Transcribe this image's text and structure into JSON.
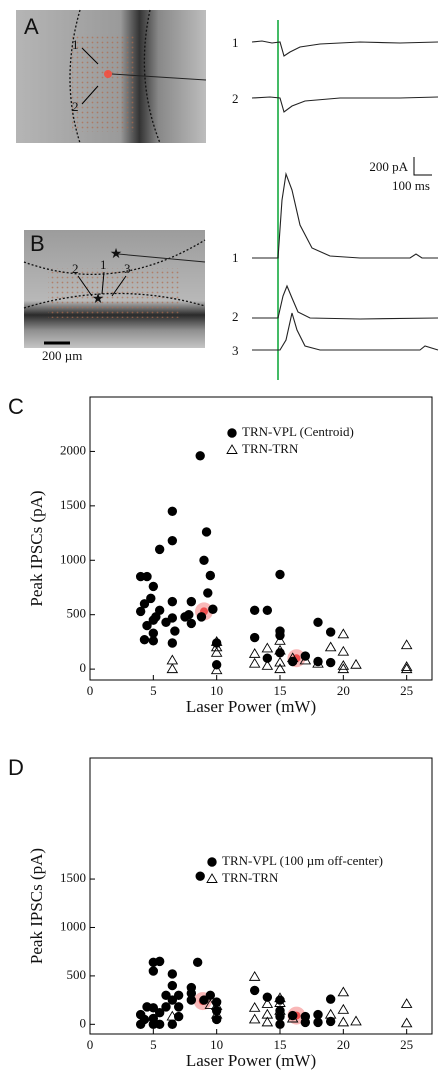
{
  "panels": {
    "A": {
      "label": "A",
      "roi_labels": [
        "1",
        "2"
      ],
      "trace_labels": [
        "1",
        "2"
      ]
    },
    "scale_bar": {
      "current": "200 pA",
      "time": "100 ms"
    },
    "B": {
      "label": "B",
      "roi_labels": [
        "2",
        "1",
        "3"
      ],
      "image_scale": "200 µm",
      "trace_labels": [
        "1",
        "2",
        "3"
      ]
    }
  },
  "chart_data": [
    {
      "type": "scatter",
      "panel_label": "C",
      "y_label": "Peak IPSCs (pA)",
      "x_label": "Laser Power (mW)",
      "xlim": [
        0,
        27
      ],
      "xticks": [
        0,
        5,
        10,
        15,
        20,
        25
      ],
      "ylim": [
        -100,
        2500
      ],
      "yticks": [
        0,
        500,
        1000,
        1500,
        2000
      ],
      "legend": "upper right",
      "series": [
        {
          "name": "TRN-VPL (Centroid)",
          "color": "#000000",
          "marker": "circle",
          "filled": true,
          "x": [
            4,
            4.5,
            5,
            5.5,
            4.8,
            4.3,
            4,
            5,
            5.5,
            4.5,
            5,
            4.3,
            5,
            5.2,
            6.5,
            6.5,
            6.5,
            6,
            6.5,
            6.7,
            6.5,
            7.5,
            7.8,
            8,
            8,
            8.7,
            9.2,
            9,
            9.5,
            9.3,
            8.8,
            9.7,
            10,
            10,
            13,
            13,
            14,
            14,
            15,
            15,
            15,
            15,
            17,
            18,
            18,
            19,
            19,
            16
          ],
          "values": [
            850,
            850,
            760,
            1100,
            650,
            600,
            530,
            450,
            540,
            400,
            330,
            270,
            260,
            480,
            1450,
            1180,
            620,
            430,
            470,
            350,
            240,
            480,
            500,
            620,
            420,
            1960,
            1260,
            1000,
            860,
            700,
            480,
            550,
            240,
            40,
            540,
            290,
            540,
            100,
            870,
            350,
            310,
            150,
            120,
            430,
            70,
            340,
            60,
            70
          ]
        },
        {
          "name": "TRN-TRN",
          "color": "#000000",
          "marker": "triangle",
          "filled": false,
          "x": [
            6.5,
            6.5,
            10,
            10,
            10,
            10,
            13,
            13,
            14,
            14,
            15,
            15,
            15,
            15,
            16,
            17,
            18,
            19,
            20,
            20,
            20,
            20,
            21,
            25,
            25,
            25
          ],
          "values": [
            80,
            0,
            250,
            150,
            200,
            -10,
            140,
            50,
            190,
            30,
            260,
            170,
            60,
            0,
            100,
            80,
            50,
            200,
            320,
            160,
            30,
            0,
            40,
            220,
            20,
            0
          ]
        }
      ],
      "highlights": {
        "color": "#ee3333",
        "x": [
          9,
          16.3
        ],
        "values": [
          530,
          100
        ]
      }
    },
    {
      "type": "scatter",
      "panel_label": "D",
      "y_label": "Peak IPSCs (pA)",
      "x_label": "Laser Power (mW)",
      "xlim": [
        0,
        27
      ],
      "xticks": [
        0,
        5,
        10,
        15,
        20,
        25
      ],
      "ylim": [
        -100,
        2750
      ],
      "yticks": [
        0,
        500,
        1000,
        1500
      ],
      "legend": "upper right",
      "series": [
        {
          "name": "TRN-VPL (100 µm off-center)",
          "color": "#000000",
          "marker": "circle",
          "filled": true,
          "x": [
            4,
            4,
            4.5,
            4.3,
            5,
            5,
            5.5,
            5,
            5,
            5.5,
            6,
            6,
            5,
            5.5,
            6.5,
            6.5,
            7,
            6.5,
            7,
            6.5,
            7,
            8,
            8,
            8,
            8.5,
            8.7,
            9,
            9.5,
            10,
            10,
            10,
            13,
            14,
            15,
            15,
            15,
            15,
            16,
            17,
            18,
            18,
            19,
            19,
            17
          ],
          "values": [
            0,
            100,
            180,
            50,
            640,
            550,
            650,
            170,
            60,
            120,
            300,
            180,
            0,
            0,
            520,
            400,
            300,
            250,
            80,
            0,
            180,
            380,
            320,
            250,
            640,
            1530,
            250,
            300,
            230,
            140,
            50,
            350,
            280,
            250,
            140,
            80,
            0,
            90,
            80,
            100,
            20,
            260,
            30,
            20
          ]
        },
        {
          "name": "TRN-TRN",
          "color": "#000000",
          "marker": "triangle",
          "filled": false,
          "x": [
            6.5,
            9.5,
            10,
            10,
            13,
            13,
            13,
            14,
            14,
            15,
            15,
            15,
            14,
            16,
            19,
            20,
            20,
            20,
            21,
            25,
            25
          ],
          "values": [
            80,
            200,
            190,
            100,
            490,
            170,
            50,
            210,
            100,
            270,
            220,
            140,
            20,
            60,
            100,
            330,
            150,
            20,
            30,
            210,
            10
          ]
        }
      ],
      "highlights": {
        "color": "#ee3333",
        "x": [
          8.9,
          16.3
        ],
        "values": [
          240,
          90
        ]
      }
    }
  ]
}
